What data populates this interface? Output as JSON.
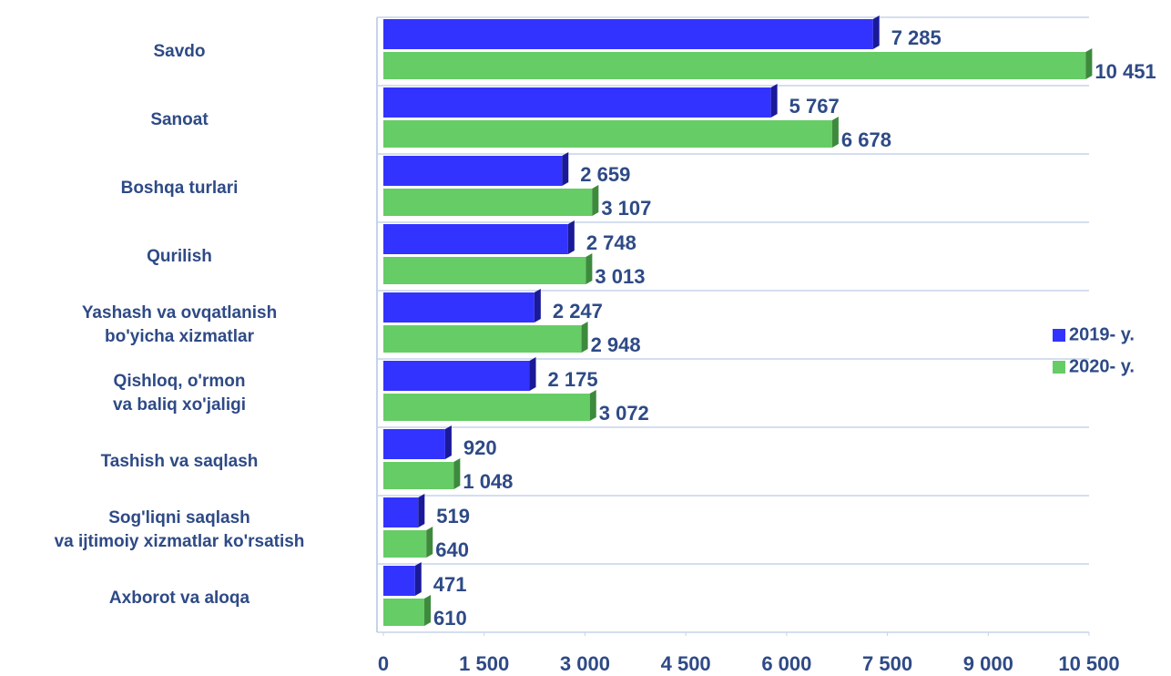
{
  "chart_data": {
    "type": "bar",
    "orientation": "horizontal",
    "categories": [
      "Savdo",
      "Sanoat",
      "Boshqa turlari",
      "Qurilish",
      "Yashash va ovqatlanish\nbo'yicha xizmatlar",
      "Qishloq, o'rmon\nva baliq xo'jaligi",
      "Tashish va saqlash",
      "Sog'liqni saqlash\nva ijtimoiy xizmatlar ko'rsatish",
      "Axborot va aloqa"
    ],
    "series": [
      {
        "name": "2019- y.",
        "color": "#3333ff",
        "values": [
          7285,
          5767,
          2659,
          2748,
          2247,
          2175,
          920,
          519,
          471
        ],
        "value_labels": [
          "7 285",
          "5 767",
          "2 659",
          "2 748",
          "2 247",
          "2 175",
          "920",
          "519",
          "471"
        ]
      },
      {
        "name": "2020- y.",
        "color": "#66cc66",
        "values": [
          10451,
          6678,
          3107,
          3013,
          2948,
          3072,
          1048,
          640,
          610
        ],
        "value_labels": [
          "10 451",
          "6 678",
          "3 107",
          "3 013",
          "2 948",
          "3 072",
          "1 048",
          "640",
          "610"
        ]
      }
    ],
    "xlim": [
      0,
      10500
    ],
    "xticks": [
      0,
      {
        "value": 1500,
        "label": "1 500"
      },
      {
        "value": 3000,
        "label": "3 000"
      },
      {
        "value": 4500,
        "label": "4 500"
      },
      {
        "value": 6000,
        "label": "6 000"
      },
      {
        "value": 7500,
        "label": "7 500"
      },
      {
        "value": 9000,
        "label": "9 000"
      },
      {
        "value": 10500,
        "label": "10 500"
      }
    ],
    "legend": "right"
  }
}
